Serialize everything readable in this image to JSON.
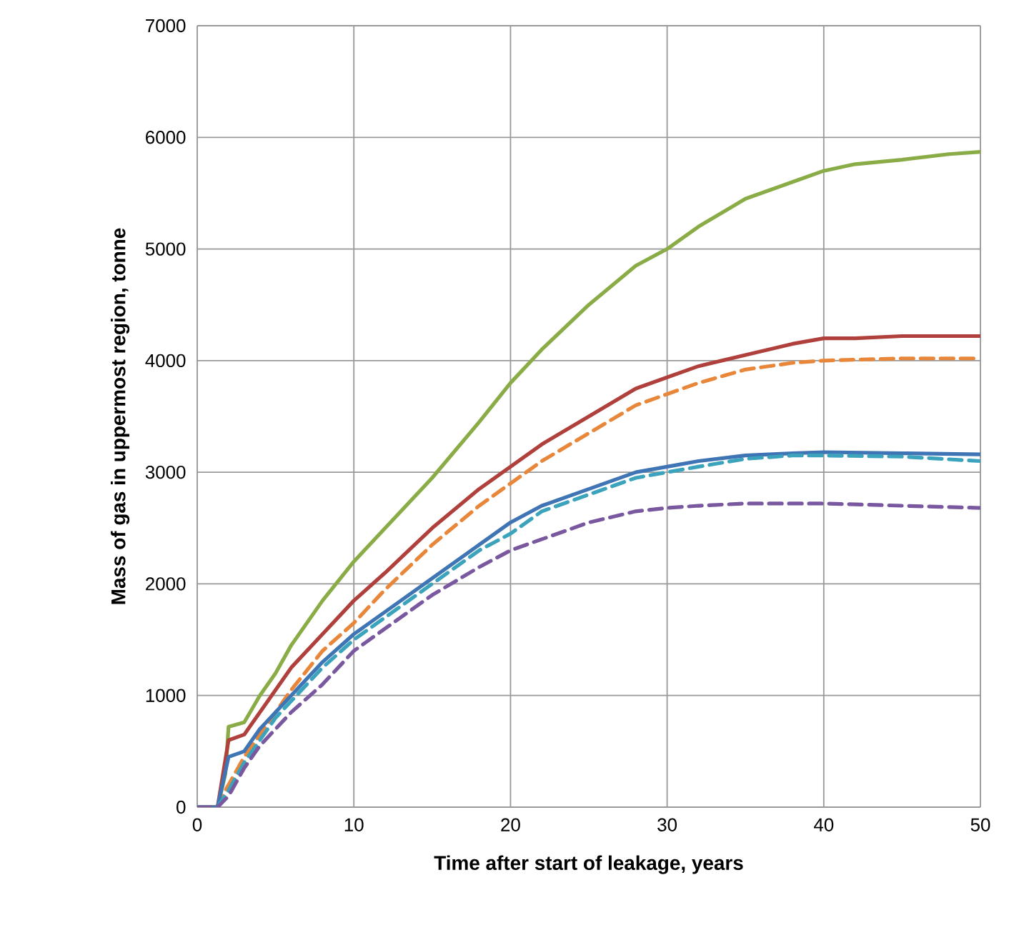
{
  "chart_data": {
    "type": "line",
    "xlabel": "Time after start of leakage, years",
    "ylabel": "Mass of gas in uppermost region, tonne",
    "xlim": [
      0,
      50
    ],
    "xticks": [
      0,
      10,
      20,
      30,
      40,
      50
    ],
    "ylim": [
      0,
      7000
    ],
    "yticks": [
      0,
      1000,
      2000,
      3000,
      4000,
      5000,
      6000,
      7000
    ],
    "grid": true,
    "marker": "none",
    "series": [
      {
        "color": "#8aac46",
        "line_style": "solid",
        "x": [
          0,
          1.3,
          1.8,
          2,
          3,
          4,
          5,
          6,
          8,
          10,
          12,
          15,
          18,
          20,
          22,
          25,
          28,
          30,
          32,
          35,
          38,
          40,
          42,
          45,
          48,
          50
        ],
        "values": [
          0,
          0,
          300,
          720,
          760,
          1000,
          1200,
          1450,
          1850,
          2200,
          2500,
          2950,
          3450,
          3800,
          4100,
          4500,
          4850,
          5000,
          5200,
          5450,
          5600,
          5700,
          5760,
          5800,
          5850,
          5870
        ]
      },
      {
        "color": "#b0403c",
        "line_style": "solid",
        "x": [
          0,
          1.3,
          2,
          3,
          4,
          5,
          6,
          8,
          10,
          12,
          15,
          18,
          20,
          22,
          25,
          28,
          30,
          32,
          35,
          38,
          40,
          42,
          45,
          48,
          50
        ],
        "values": [
          0,
          0,
          600,
          650,
          850,
          1050,
          1250,
          1550,
          1850,
          2100,
          2500,
          2850,
          3050,
          3250,
          3500,
          3750,
          3850,
          3950,
          4050,
          4150,
          4200,
          4200,
          4220,
          4220,
          4220
        ]
      },
      {
        "color": "#e8873a",
        "line_style": "dashed",
        "x": [
          0,
          1.3,
          1.8,
          2,
          3,
          4,
          5,
          6,
          8,
          10,
          12,
          15,
          18,
          20,
          22,
          25,
          28,
          30,
          32,
          35,
          38,
          40,
          45,
          50
        ],
        "values": [
          0,
          0,
          150,
          200,
          450,
          650,
          850,
          1050,
          1400,
          1650,
          1950,
          2350,
          2700,
          2900,
          3100,
          3350,
          3600,
          3700,
          3800,
          3920,
          3980,
          4000,
          4020,
          4020
        ]
      },
      {
        "color": "#3f75b5",
        "line_style": "solid",
        "x": [
          0,
          1.3,
          2,
          3,
          4,
          5,
          6,
          8,
          10,
          12,
          15,
          18,
          20,
          22,
          25,
          28,
          30,
          32,
          35,
          38,
          40,
          45,
          50
        ],
        "values": [
          0,
          0,
          450,
          500,
          700,
          850,
          1000,
          1300,
          1550,
          1750,
          2050,
          2350,
          2550,
          2700,
          2850,
          3000,
          3050,
          3100,
          3150,
          3170,
          3180,
          3170,
          3160
        ]
      },
      {
        "color": "#3ba3bc",
        "line_style": "dashed",
        "x": [
          0,
          1.3,
          2,
          3,
          4,
          5,
          6,
          8,
          10,
          12,
          15,
          18,
          20,
          22,
          25,
          28,
          30,
          32,
          35,
          38,
          40,
          45,
          50
        ],
        "values": [
          0,
          0,
          150,
          400,
          600,
          800,
          950,
          1250,
          1500,
          1700,
          2000,
          2300,
          2450,
          2650,
          2800,
          2950,
          3000,
          3050,
          3120,
          3150,
          3150,
          3140,
          3100
        ]
      },
      {
        "color": "#7a58a0",
        "line_style": "dashed",
        "x": [
          0,
          1.3,
          2,
          3,
          4,
          5,
          6,
          8,
          10,
          12,
          15,
          18,
          20,
          22,
          25,
          28,
          30,
          32,
          35,
          38,
          40,
          45,
          50
        ],
        "values": [
          0,
          0,
          100,
          350,
          550,
          700,
          850,
          1100,
          1400,
          1600,
          1900,
          2150,
          2300,
          2400,
          2550,
          2650,
          2680,
          2700,
          2720,
          2720,
          2720,
          2700,
          2680
        ]
      }
    ]
  }
}
